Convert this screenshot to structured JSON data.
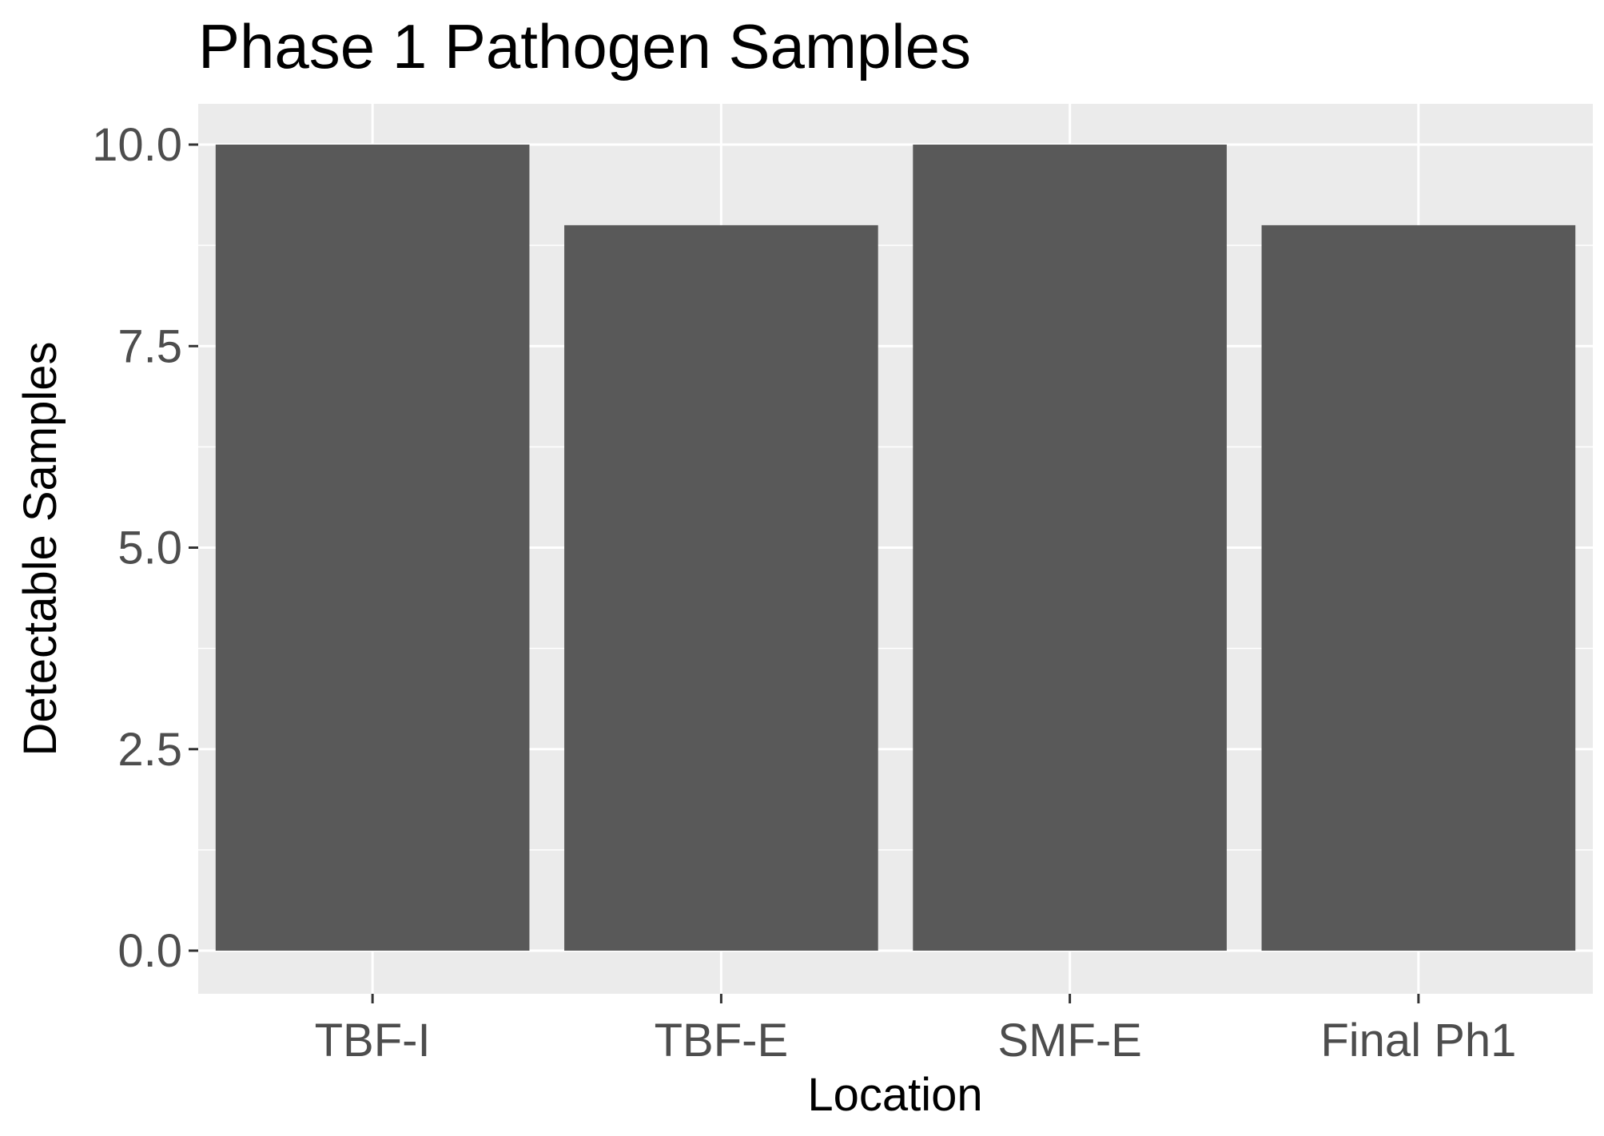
{
  "chart_data": {
    "type": "bar",
    "title": "Phase 1 Pathogen Samples",
    "xlabel": "Location",
    "ylabel": "Detectable Samples",
    "categories": [
      "TBF-I",
      "TBF-E",
      "SMF-E",
      "Final Ph1"
    ],
    "values": [
      10,
      9,
      10,
      9
    ],
    "ylim": [
      0,
      10
    ],
    "yticks": [
      "0.0",
      "2.5",
      "5.0",
      "7.5",
      "10.0"
    ],
    "grid": true,
    "legend": "none",
    "colors": {
      "panel_background": "#EBEBEB",
      "gridline": "#FFFFFF",
      "bar_fill": "#595959",
      "tick_label": "#4D4D4D",
      "axis_title": "#000000",
      "tick_mark": "#333333"
    }
  }
}
